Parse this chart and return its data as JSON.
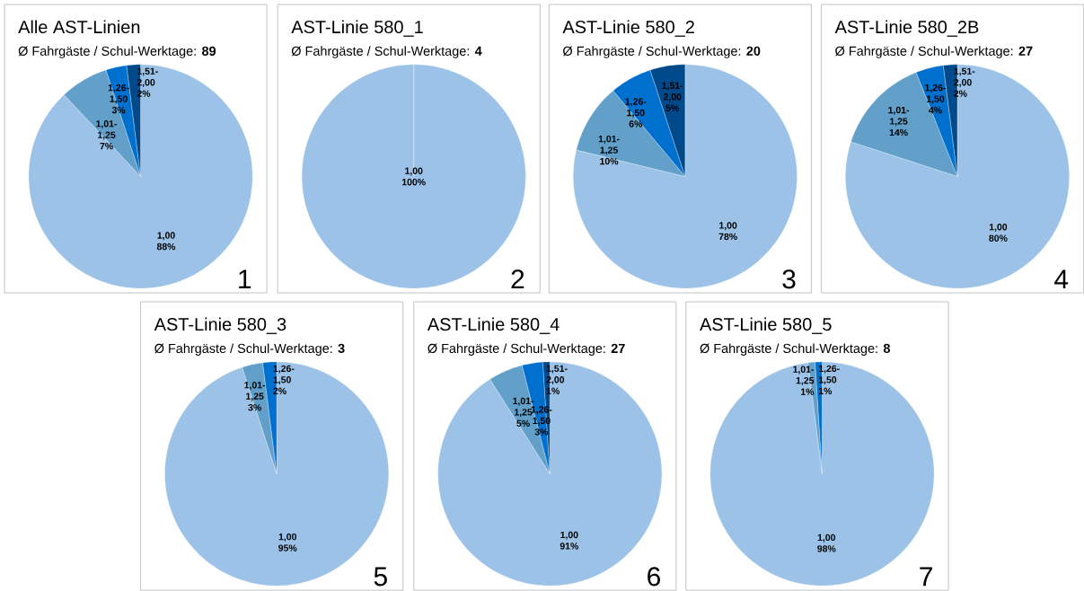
{
  "chart_data": [
    {
      "type": "pie",
      "title": "Alle AST-Linien",
      "subtitle": "Ø Fahrgäste / Schul-Werktage: **89**",
      "categories": [
        "1,00",
        "1,01-1,25",
        "1,26-1,50",
        "1,51-2,00"
      ],
      "values": [
        88,
        7,
        3,
        2
      ],
      "value_labels": [
        "88%",
        "7%",
        "3%",
        "2%"
      ],
      "colors": [
        "#9cc3e7",
        "#62a0ca",
        "#0070cf",
        "#00498a"
      ],
      "annotations": [
        "1"
      ]
    },
    {
      "type": "pie",
      "title": "AST-Linie 580_1",
      "subtitle": "Ø Fahrgäste / Schul-Werktage: **4**",
      "categories": [
        "1,00"
      ],
      "values": [
        100
      ],
      "value_labels": [
        "100%"
      ],
      "colors": [
        "#9cc3e7"
      ],
      "annotations": [
        "2"
      ]
    },
    {
      "type": "pie",
      "title": "AST-Linie 580_2",
      "subtitle": "Ø Fahrgäste / Schul-Werktage: **20**",
      "categories": [
        "1,00",
        "1,01-1,25",
        "1,26-1,50",
        "1,51-2,00"
      ],
      "values": [
        78,
        10,
        6,
        5
      ],
      "value_labels": [
        "78%",
        "10%",
        "6%",
        "5%"
      ],
      "colors": [
        "#9cc3e7",
        "#62a0ca",
        "#0070cf",
        "#00498a"
      ],
      "annotations": [
        "3"
      ]
    },
    {
      "type": "pie",
      "title": "AST-Linie 580_2B",
      "subtitle": "Ø Fahrgäste / Schul-Werktage: **27**",
      "categories": [
        "1,00",
        "1,01-1,25",
        "1,26-1,50",
        "1,51-2,00"
      ],
      "values": [
        80,
        14,
        4,
        2
      ],
      "value_labels": [
        "80%",
        "14%",
        "4%",
        "2%"
      ],
      "colors": [
        "#9cc3e7",
        "#62a0ca",
        "#0070cf",
        "#00498a"
      ],
      "annotations": [
        "4"
      ]
    },
    {
      "type": "pie",
      "title": "AST-Linie 580_3",
      "subtitle": "Ø Fahrgäste / Schul-Werktage: **3**",
      "categories": [
        "1,00",
        "1,01-1,25",
        "1,26-1,50"
      ],
      "values": [
        95,
        3,
        2
      ],
      "value_labels": [
        "95%",
        "3%",
        "2%"
      ],
      "colors": [
        "#9cc3e7",
        "#62a0ca",
        "#0070cf"
      ],
      "annotations": [
        "5"
      ]
    },
    {
      "type": "pie",
      "title": "AST-Linie 580_4",
      "subtitle": "Ø Fahrgäste / Schul-Werktage: **27**",
      "categories": [
        "1,00",
        "1,01-1,25",
        "1,26-1,50",
        "1,51-2,00"
      ],
      "values": [
        91,
        5,
        3,
        1
      ],
      "value_labels": [
        "91%",
        "5%",
        "3%",
        "1%"
      ],
      "colors": [
        "#9cc3e7",
        "#62a0ca",
        "#0070cf",
        "#00498a"
      ],
      "annotations": [
        "6"
      ]
    },
    {
      "type": "pie",
      "title": "AST-Linie 580_5",
      "subtitle": "Ø Fahrgäste / Schul-Werktage: **8**",
      "categories": [
        "1,00",
        "1,01-1,25",
        "1,26-1,50"
      ],
      "values": [
        98,
        1,
        1
      ],
      "value_labels": [
        "98%",
        "1%",
        "1%"
      ],
      "colors": [
        "#9cc3e7",
        "#62a0ca",
        "#0070cf"
      ],
      "annotations": [
        "7"
      ]
    }
  ]
}
